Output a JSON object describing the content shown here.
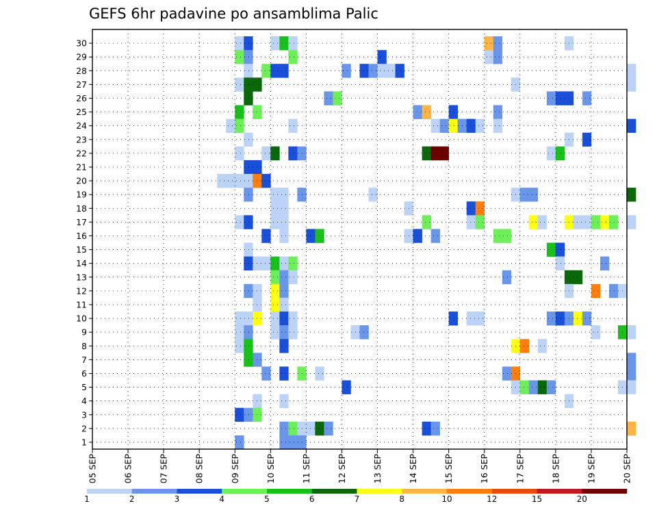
{
  "chart_data": {
    "type": "heatmap",
    "title": "GEFS 6hr padavine po ansamblima Palic",
    "xlabel": "",
    "ylabel": "",
    "x_tick_labels": [
      "05 SEP",
      "06 SEP",
      "07 SEP",
      "08 SEP",
      "09 SEP",
      "10 SEP",
      "11 SEP",
      "12 SEP",
      "13 SEP",
      "14 SEP",
      "15 SEP",
      "16 SEP",
      "17 SEP",
      "18 SEP",
      "19 SEP",
      "20 SEP"
    ],
    "y_tick_labels": [
      "1",
      "2",
      "3",
      "4",
      "5",
      "6",
      "7",
      "8",
      "9",
      "10",
      "11",
      "12",
      "13",
      "14",
      "15",
      "16",
      "17",
      "18",
      "19",
      "20",
      "21",
      "22",
      "23",
      "24",
      "25",
      "26",
      "27",
      "28",
      "29",
      "30"
    ],
    "time_step_hours": 6,
    "grid": true,
    "legend_position": "bottom",
    "legend_labels": [
      "1",
      "2",
      "3",
      "4",
      "5",
      "6",
      "7",
      "8",
      "10",
      "12",
      "15",
      "20"
    ],
    "bin_colors": [
      "#bcd2f7",
      "#6a96ea",
      "#1a4fd8",
      "#6eef5a",
      "#19c019",
      "#0a680a",
      "#ffff12",
      "#ffb446",
      "#ff7e0e",
      "#e84a14",
      "#c21a1a",
      "#6b0000"
    ],
    "cells": [
      [
        30,
        16,
        1
      ],
      [
        30,
        17,
        3
      ],
      [
        30,
        20,
        1
      ],
      [
        30,
        21,
        5
      ],
      [
        30,
        22,
        1
      ],
      [
        30,
        44,
        8
      ],
      [
        30,
        45,
        2
      ],
      [
        30,
        53,
        1
      ],
      [
        29,
        16,
        4
      ],
      [
        29,
        17,
        2
      ],
      [
        29,
        22,
        4
      ],
      [
        29,
        32,
        3
      ],
      [
        29,
        44,
        1
      ],
      [
        29,
        45,
        2
      ],
      [
        28,
        17,
        1
      ],
      [
        28,
        19,
        4
      ],
      [
        28,
        20,
        3
      ],
      [
        28,
        21,
        3
      ],
      [
        28,
        28,
        2
      ],
      [
        28,
        30,
        3
      ],
      [
        28,
        31,
        2
      ],
      [
        28,
        32,
        1
      ],
      [
        28,
        33,
        1
      ],
      [
        28,
        34,
        3
      ],
      [
        28,
        60,
        1
      ],
      [
        27,
        16,
        1
      ],
      [
        27,
        17,
        6
      ],
      [
        27,
        18,
        6
      ],
      [
        27,
        47,
        1
      ],
      [
        27,
        60,
        1
      ],
      [
        26,
        17,
        6
      ],
      [
        26,
        26,
        2
      ],
      [
        26,
        27,
        4
      ],
      [
        26,
        51,
        2
      ],
      [
        26,
        52,
        3
      ],
      [
        26,
        53,
        3
      ],
      [
        26,
        55,
        2
      ],
      [
        25,
        16,
        5
      ],
      [
        25,
        18,
        4
      ],
      [
        25,
        36,
        2
      ],
      [
        25,
        37,
        8
      ],
      [
        25,
        40,
        3
      ],
      [
        25,
        45,
        2
      ],
      [
        24,
        15,
        1
      ],
      [
        24,
        16,
        4
      ],
      [
        24,
        22,
        1
      ],
      [
        24,
        38,
        1
      ],
      [
        24,
        39,
        2
      ],
      [
        24,
        40,
        7
      ],
      [
        24,
        41,
        2
      ],
      [
        24,
        42,
        3
      ],
      [
        24,
        43,
        1
      ],
      [
        24,
        45,
        1
      ],
      [
        24,
        60,
        3
      ],
      [
        23,
        17,
        1
      ],
      [
        23,
        53,
        1
      ],
      [
        23,
        55,
        3
      ],
      [
        22,
        16,
        1
      ],
      [
        22,
        19,
        1
      ],
      [
        22,
        20,
        6
      ],
      [
        22,
        22,
        3
      ],
      [
        22,
        23,
        2
      ],
      [
        22,
        37,
        6
      ],
      [
        22,
        38,
        12
      ],
      [
        22,
        39,
        12
      ],
      [
        22,
        51,
        1
      ],
      [
        22,
        52,
        5
      ],
      [
        21,
        17,
        3
      ],
      [
        21,
        18,
        3
      ],
      [
        20,
        14,
        1
      ],
      [
        20,
        15,
        1
      ],
      [
        20,
        16,
        1
      ],
      [
        20,
        17,
        1
      ],
      [
        20,
        18,
        9
      ],
      [
        20,
        19,
        3
      ],
      [
        19,
        17,
        2
      ],
      [
        19,
        20,
        1
      ],
      [
        19,
        21,
        1
      ],
      [
        19,
        23,
        2
      ],
      [
        19,
        31,
        1
      ],
      [
        19,
        47,
        1
      ],
      [
        19,
        48,
        2
      ],
      [
        19,
        49,
        2
      ],
      [
        19,
        60,
        6
      ],
      [
        18,
        20,
        1
      ],
      [
        18,
        21,
        1
      ],
      [
        18,
        35,
        1
      ],
      [
        18,
        42,
        3
      ],
      [
        18,
        43,
        9
      ],
      [
        17,
        16,
        1
      ],
      [
        17,
        17,
        3
      ],
      [
        17,
        20,
        1
      ],
      [
        17,
        21,
        1
      ],
      [
        17,
        37,
        4
      ],
      [
        17,
        42,
        1
      ],
      [
        17,
        43,
        4
      ],
      [
        17,
        49,
        7
      ],
      [
        17,
        50,
        1
      ],
      [
        17,
        53,
        7
      ],
      [
        17,
        54,
        1
      ],
      [
        17,
        55,
        1
      ],
      [
        17,
        56,
        4
      ],
      [
        17,
        57,
        7
      ],
      [
        17,
        58,
        4
      ],
      [
        17,
        60,
        1
      ],
      [
        16,
        19,
        3
      ],
      [
        16,
        21,
        1
      ],
      [
        16,
        24,
        3
      ],
      [
        16,
        25,
        5
      ],
      [
        16,
        35,
        1
      ],
      [
        16,
        36,
        3
      ],
      [
        16,
        38,
        2
      ],
      [
        16,
        45,
        4
      ],
      [
        16,
        46,
        4
      ],
      [
        15,
        17,
        1
      ],
      [
        15,
        51,
        5
      ],
      [
        15,
        52,
        3
      ],
      [
        14,
        17,
        3
      ],
      [
        14,
        18,
        1
      ],
      [
        14,
        19,
        1
      ],
      [
        14,
        20,
        5
      ],
      [
        14,
        21,
        1
      ],
      [
        14,
        22,
        4
      ],
      [
        14,
        52,
        1
      ],
      [
        14,
        57,
        2
      ],
      [
        13,
        20,
        4
      ],
      [
        13,
        21,
        2
      ],
      [
        13,
        22,
        1
      ],
      [
        13,
        46,
        2
      ],
      [
        13,
        53,
        6
      ],
      [
        13,
        54,
        6
      ],
      [
        12,
        17,
        2
      ],
      [
        12,
        18,
        1
      ],
      [
        12,
        20,
        7
      ],
      [
        12,
        21,
        2
      ],
      [
        12,
        53,
        1
      ],
      [
        12,
        56,
        9
      ],
      [
        12,
        58,
        2
      ],
      [
        12,
        59,
        1
      ],
      [
        11,
        18,
        1
      ],
      [
        11,
        20,
        7
      ],
      [
        11,
        21,
        1
      ],
      [
        10,
        16,
        1
      ],
      [
        10,
        17,
        1
      ],
      [
        10,
        18,
        7
      ],
      [
        10,
        20,
        1
      ],
      [
        10,
        21,
        3
      ],
      [
        10,
        22,
        1
      ],
      [
        10,
        40,
        3
      ],
      [
        10,
        42,
        1
      ],
      [
        10,
        43,
        1
      ],
      [
        10,
        51,
        2
      ],
      [
        10,
        52,
        3
      ],
      [
        10,
        53,
        2
      ],
      [
        10,
        54,
        7
      ],
      [
        10,
        55,
        2
      ],
      [
        9,
        16,
        1
      ],
      [
        9,
        17,
        2
      ],
      [
        9,
        20,
        1
      ],
      [
        9,
        21,
        2
      ],
      [
        9,
        22,
        1
      ],
      [
        9,
        29,
        1
      ],
      [
        9,
        30,
        2
      ],
      [
        9,
        56,
        1
      ],
      [
        9,
        59,
        5
      ],
      [
        9,
        60,
        1
      ],
      [
        8,
        16,
        1
      ],
      [
        8,
        17,
        5
      ],
      [
        8,
        21,
        3
      ],
      [
        8,
        47,
        7
      ],
      [
        8,
        48,
        9
      ],
      [
        8,
        50,
        1
      ],
      [
        7,
        17,
        5
      ],
      [
        7,
        18,
        2
      ],
      [
        7,
        60,
        2
      ],
      [
        6,
        19,
        2
      ],
      [
        6,
        21,
        3
      ],
      [
        6,
        23,
        4
      ],
      [
        6,
        25,
        1
      ],
      [
        6,
        46,
        2
      ],
      [
        6,
        47,
        9
      ],
      [
        6,
        60,
        2
      ],
      [
        5,
        28,
        3
      ],
      [
        5,
        47,
        1
      ],
      [
        5,
        48,
        4
      ],
      [
        5,
        49,
        2
      ],
      [
        5,
        50,
        6
      ],
      [
        5,
        51,
        2
      ],
      [
        5,
        59,
        1
      ],
      [
        5,
        60,
        1
      ],
      [
        4,
        18,
        1
      ],
      [
        4,
        21,
        1
      ],
      [
        4,
        53,
        1
      ],
      [
        3,
        16,
        3
      ],
      [
        3,
        17,
        2
      ],
      [
        3,
        18,
        4
      ],
      [
        2,
        21,
        2
      ],
      [
        2,
        22,
        4
      ],
      [
        2,
        23,
        1
      ],
      [
        2,
        24,
        1
      ],
      [
        2,
        25,
        6
      ],
      [
        2,
        26,
        2
      ],
      [
        2,
        37,
        3
      ],
      [
        2,
        38,
        2
      ],
      [
        2,
        60,
        8
      ],
      [
        1,
        16,
        2
      ],
      [
        1,
        21,
        2
      ],
      [
        1,
        22,
        2
      ],
      [
        1,
        23,
        2
      ]
    ]
  }
}
